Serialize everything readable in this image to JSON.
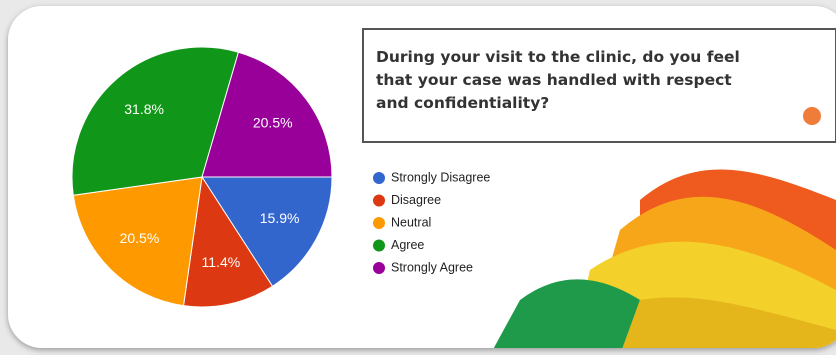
{
  "chart_data": {
    "type": "pie",
    "title": [
      "During your visit to the clinic, do you feel",
      "that your case was handled with respect",
      "and confidentiality?"
    ],
    "categories": [
      "Strongly Disagree",
      "Disagree",
      "Neutral",
      "Agree",
      "Strongly Agree"
    ],
    "values": [
      15.9,
      11.4,
      20.5,
      31.8,
      20.5
    ],
    "value_labels": [
      "15.9%",
      "11.4%",
      "20.5%",
      "31.8%",
      "20.5%"
    ],
    "colors": [
      "#3366cc",
      "#dc3912",
      "#ff9900",
      "#109618",
      "#990099"
    ]
  }
}
